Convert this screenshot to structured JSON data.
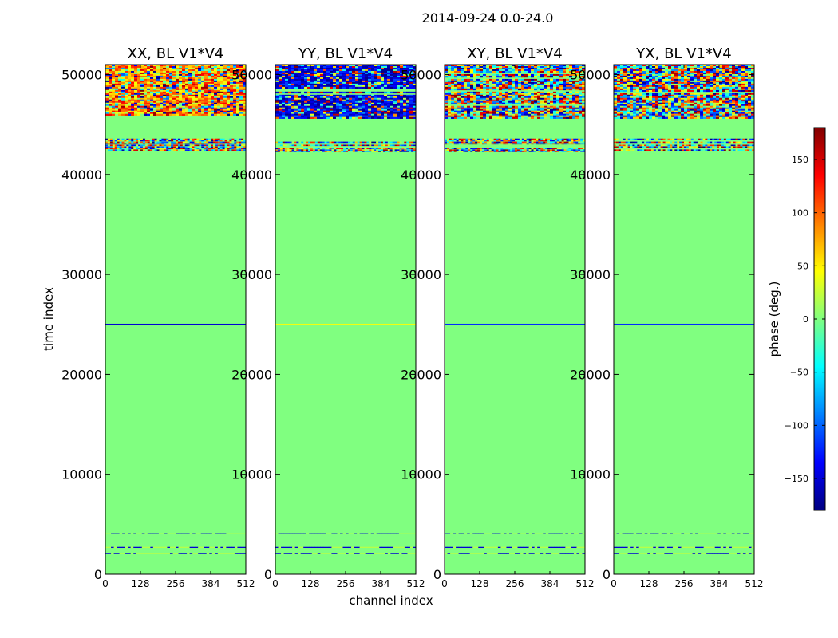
{
  "figure": {
    "suptitle": "2014-09-24 0.0-24.0",
    "xlabel": "channel index",
    "ylabel": "time index"
  },
  "chart_data": [
    {
      "type": "heatmap",
      "title": "XX, BL V1*V4",
      "x_ticks": [
        0,
        128,
        256,
        384,
        512
      ],
      "y_ticks": [
        0,
        10000,
        20000,
        30000,
        40000,
        50000
      ],
      "xlim": [
        0,
        512
      ],
      "ylim": [
        0,
        51000
      ],
      "background_value": 0,
      "bands": [
        {
          "t0": 45600,
          "t1": 51000,
          "pattern": "noise",
          "note": "noisy phase, warm/yellow dominated"
        },
        {
          "t0": 42200,
          "t1": 43600,
          "pattern": "stripes"
        },
        {
          "t0": 24950,
          "t1": 25050,
          "pattern": "line",
          "value": -150
        },
        {
          "t0": 1900,
          "t1": 4100,
          "pattern": "lines"
        }
      ]
    },
    {
      "type": "heatmap",
      "title": "YY, BL V1*V4",
      "x_ticks": [
        0,
        128,
        256,
        384,
        512
      ],
      "y_ticks": [
        0,
        10000,
        20000,
        30000,
        40000,
        50000
      ],
      "xlim": [
        0,
        512
      ],
      "ylim": [
        0,
        51000
      ],
      "background_value": 0,
      "bands": [
        {
          "t0": 45600,
          "t1": 51000,
          "pattern": "noise",
          "note": "noisy phase, blue dominated"
        },
        {
          "t0": 42200,
          "t1": 43600,
          "pattern": "stripes"
        },
        {
          "t0": 24950,
          "t1": 25050,
          "pattern": "line",
          "value": 40
        },
        {
          "t0": 1900,
          "t1": 4100,
          "pattern": "lines"
        }
      ]
    },
    {
      "type": "heatmap",
      "title": "XY, BL V1*V4",
      "x_ticks": [
        0,
        128,
        256,
        384,
        512
      ],
      "y_ticks": [
        0,
        10000,
        20000,
        30000,
        40000,
        50000
      ],
      "xlim": [
        0,
        512
      ],
      "ylim": [
        0,
        51000
      ],
      "background_value": 0,
      "bands": [
        {
          "t0": 45600,
          "t1": 51000,
          "pattern": "noise",
          "note": "noisy phase, mixed colors"
        },
        {
          "t0": 42200,
          "t1": 43600,
          "pattern": "stripes"
        },
        {
          "t0": 24950,
          "t1": 25050,
          "pattern": "line",
          "value": -120
        },
        {
          "t0": 1900,
          "t1": 4100,
          "pattern": "lines"
        }
      ]
    },
    {
      "type": "heatmap",
      "title": "YX, BL V1*V4",
      "x_ticks": [
        0,
        128,
        256,
        384,
        512
      ],
      "y_ticks": [
        0,
        10000,
        20000,
        30000,
        40000,
        50000
      ],
      "xlim": [
        0,
        512
      ],
      "ylim": [
        0,
        51000
      ],
      "background_value": 0,
      "bands": [
        {
          "t0": 45600,
          "t1": 51000,
          "pattern": "noise",
          "note": "noisy phase, mixed colors"
        },
        {
          "t0": 42200,
          "t1": 43600,
          "pattern": "stripes"
        },
        {
          "t0": 24950,
          "t1": 25050,
          "pattern": "line",
          "value": -120
        },
        {
          "t0": 1900,
          "t1": 4100,
          "pattern": "lines"
        }
      ]
    }
  ],
  "colorbar": {
    "label": "phase (deg.)",
    "colormap": "jet",
    "range": [
      -180,
      180
    ],
    "ticks": [
      -150,
      -100,
      -50,
      0,
      50,
      100,
      150
    ],
    "tick_labels": [
      "−150",
      "−100",
      "−50",
      "0",
      "50",
      "100",
      "150"
    ]
  }
}
